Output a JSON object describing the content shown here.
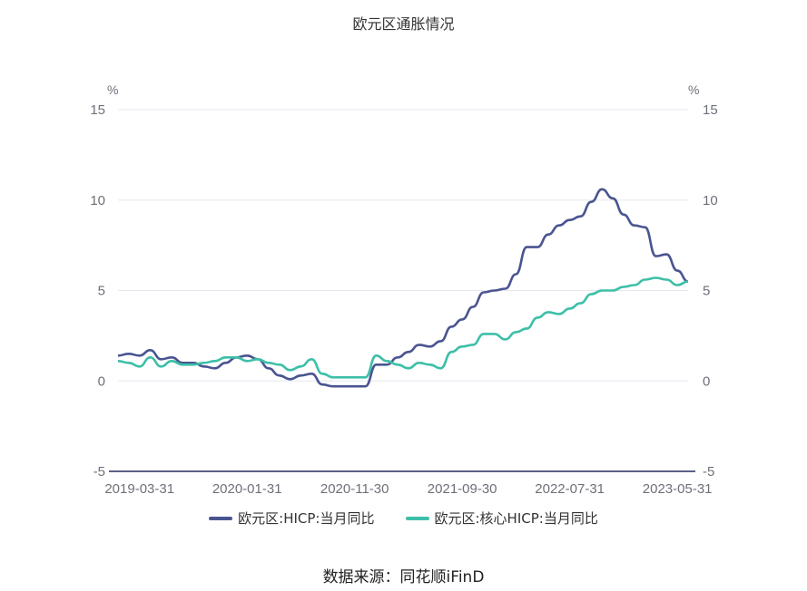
{
  "chart_data": {
    "type": "line",
    "title": "欧元区通胀情况",
    "left_unit": "%",
    "right_unit": "%",
    "ylim": [
      -5,
      15
    ],
    "y_ticks": [
      15,
      10,
      5,
      0,
      -5
    ],
    "x_tick_labels": [
      "2019-03-31",
      "2020-01-31",
      "2020-11-30",
      "2021-09-30",
      "2022-07-31",
      "2023-05-31"
    ],
    "x": [
      "2019-01",
      "2019-02",
      "2019-03",
      "2019-04",
      "2019-05",
      "2019-06",
      "2019-07",
      "2019-08",
      "2019-09",
      "2019-10",
      "2019-11",
      "2019-12",
      "2020-01",
      "2020-02",
      "2020-03",
      "2020-04",
      "2020-05",
      "2020-06",
      "2020-07",
      "2020-08",
      "2020-09",
      "2020-10",
      "2020-11",
      "2020-12",
      "2021-01",
      "2021-02",
      "2021-03",
      "2021-04",
      "2021-05",
      "2021-06",
      "2021-07",
      "2021-08",
      "2021-09",
      "2021-10",
      "2021-11",
      "2021-12",
      "2022-01",
      "2022-02",
      "2022-03",
      "2022-04",
      "2022-05",
      "2022-06",
      "2022-07",
      "2022-08",
      "2022-09",
      "2022-10",
      "2022-11",
      "2022-12",
      "2023-01",
      "2023-02",
      "2023-03",
      "2023-04",
      "2023-05",
      "2023-06"
    ],
    "series": [
      {
        "name": "欧元区:HICP:当月同比",
        "color": "#4a5490",
        "values": [
          1.4,
          1.5,
          1.4,
          1.7,
          1.2,
          1.3,
          1.0,
          1.0,
          0.8,
          0.7,
          1.0,
          1.3,
          1.4,
          1.2,
          0.7,
          0.3,
          0.1,
          0.3,
          0.4,
          -0.2,
          -0.3,
          -0.3,
          -0.3,
          -0.3,
          0.9,
          0.9,
          1.3,
          1.6,
          2.0,
          1.9,
          2.2,
          3.0,
          3.4,
          4.1,
          4.9,
          5.0,
          5.1,
          5.9,
          7.4,
          7.4,
          8.1,
          8.6,
          8.9,
          9.1,
          9.9,
          10.6,
          10.1,
          9.2,
          8.6,
          8.5,
          6.9,
          7.0,
          6.1,
          5.5
        ]
      },
      {
        "name": "欧元区:核心HICP:当月同比",
        "color": "#3dbfa8",
        "values": [
          1.1,
          1.0,
          0.8,
          1.3,
          0.8,
          1.1,
          0.9,
          0.9,
          1.0,
          1.1,
          1.3,
          1.3,
          1.1,
          1.2,
          1.0,
          0.9,
          0.6,
          0.8,
          1.2,
          0.4,
          0.2,
          0.2,
          0.2,
          0.2,
          1.4,
          1.1,
          0.9,
          0.7,
          1.0,
          0.9,
          0.7,
          1.6,
          1.9,
          2.0,
          2.6,
          2.6,
          2.3,
          2.7,
          2.9,
          3.5,
          3.8,
          3.7,
          4.0,
          4.3,
          4.8,
          5.0,
          5.0,
          5.2,
          5.3,
          5.6,
          5.7,
          5.6,
          5.3,
          5.5
        ]
      }
    ],
    "grid": true,
    "legend_position": "bottom",
    "source": "数据来源：同花顺iFinD"
  }
}
